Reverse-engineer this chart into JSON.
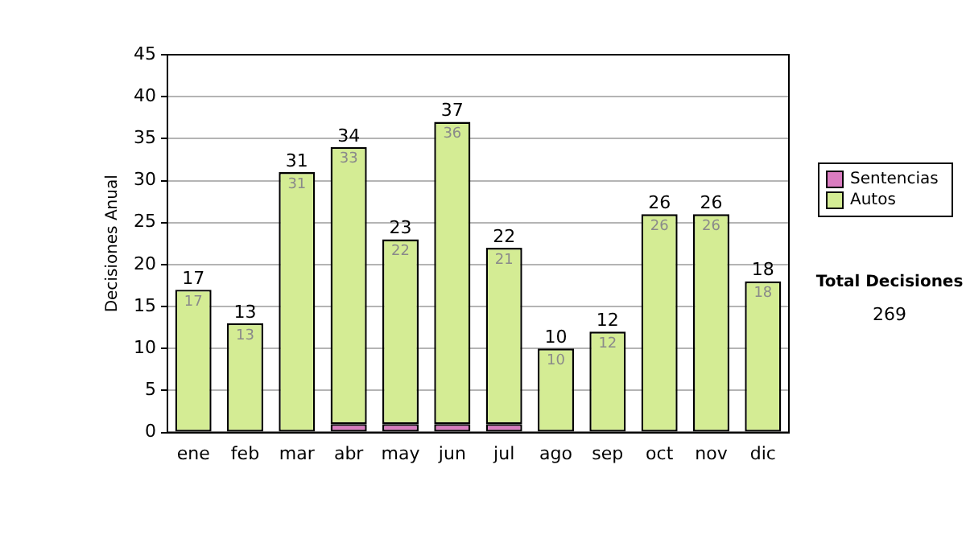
{
  "chart_data": {
    "type": "bar",
    "stacked": true,
    "ylabel": "Decisiones Anual",
    "categories": [
      "ene",
      "feb",
      "mar",
      "abr",
      "may",
      "jun",
      "jul",
      "ago",
      "sep",
      "oct",
      "nov",
      "dic"
    ],
    "series": [
      {
        "name": "Sentencias",
        "color": "#d97cc0",
        "values": [
          0,
          0,
          0,
          1,
          1,
          1,
          1,
          0,
          0,
          0,
          0,
          0
        ]
      },
      {
        "name": "Autos",
        "color": "#d4ec94",
        "values": [
          17,
          13,
          31,
          33,
          22,
          36,
          21,
          10,
          12,
          26,
          26,
          18
        ],
        "value_labels": [
          "17",
          "13",
          "31",
          "33",
          "22",
          "36",
          "21",
          "10",
          "12",
          "26",
          "26",
          "18"
        ]
      }
    ],
    "totals": [
      "17",
      "13",
      "31",
      "34",
      "23",
      "37",
      "22",
      "10",
      "12",
      "26",
      "26",
      "18"
    ],
    "ylim": [
      0,
      45
    ],
    "yticks": [
      0,
      5,
      10,
      15,
      20,
      25,
      30,
      35,
      40,
      45
    ],
    "grid": "y",
    "legend": "right",
    "annotations": [
      "Total Decisiones",
      "269"
    ]
  }
}
